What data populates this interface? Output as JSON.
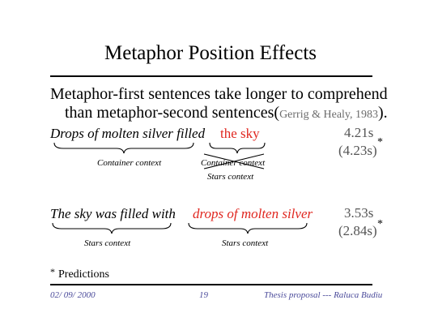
{
  "title": "Metaphor Position Effects",
  "statement": {
    "line1": "Metaphor-first sentences take longer to comprehend",
    "line2": "than metaphor-second sentences(",
    "citation": "Gerrig & Healy, 1983",
    "close": ")."
  },
  "example1": {
    "part1": "Drops of molten silver filled",
    "part2": "the sky",
    "time": "4.21s",
    "prediction": "(4.23s)",
    "asterisk": "*",
    "context1": "Container context",
    "context2_crossed": "Container context",
    "context2": "Stars context"
  },
  "example2": {
    "part1": "The sky was filled with",
    "part2": "drops of molten silver",
    "time": "3.53s",
    "prediction": "(2.84s)",
    "asterisk": "*",
    "context1": "Stars context",
    "context2": "Stars context"
  },
  "footnote": {
    "marker": "*",
    "text": "Predictions"
  },
  "footer": {
    "date": "02/ 09/ 2000",
    "page": "19",
    "label": "Thesis proposal --- Raluca Budiu"
  },
  "colors": {
    "highlight": "#e0261f",
    "footer": "#4a4a9a"
  }
}
